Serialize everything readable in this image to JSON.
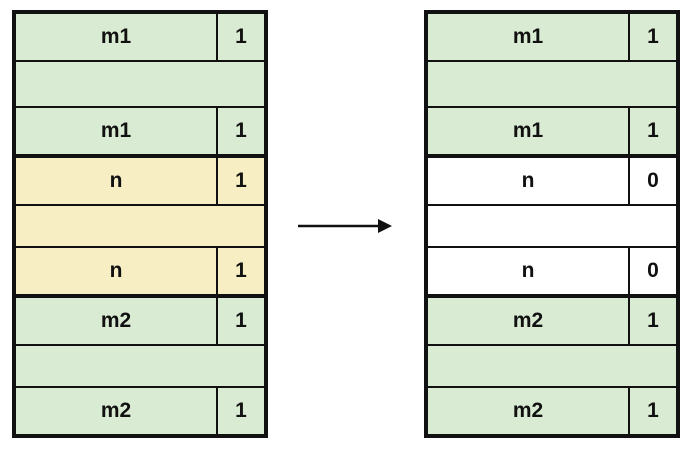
{
  "colors": {
    "allocated_green": "#d9ecd3",
    "allocated_yellow": "#f7efc3",
    "free_white": "#ffffff",
    "border": "#111111"
  },
  "before": {
    "blocks": [
      {
        "label": "m1",
        "bit": "1",
        "fill": "#d9ecd3"
      },
      {
        "label": "n",
        "bit": "1",
        "fill": "#f7efc3"
      },
      {
        "label": "m2",
        "bit": "1",
        "fill": "#d9ecd3"
      }
    ]
  },
  "after": {
    "blocks": [
      {
        "label": "m1",
        "bit": "1",
        "fill": "#d9ecd3"
      },
      {
        "label": "n",
        "bit": "0",
        "fill": "#ffffff"
      },
      {
        "label": "m2",
        "bit": "1",
        "fill": "#d9ecd3"
      }
    ]
  },
  "arrow_icon": "right-arrow-icon"
}
